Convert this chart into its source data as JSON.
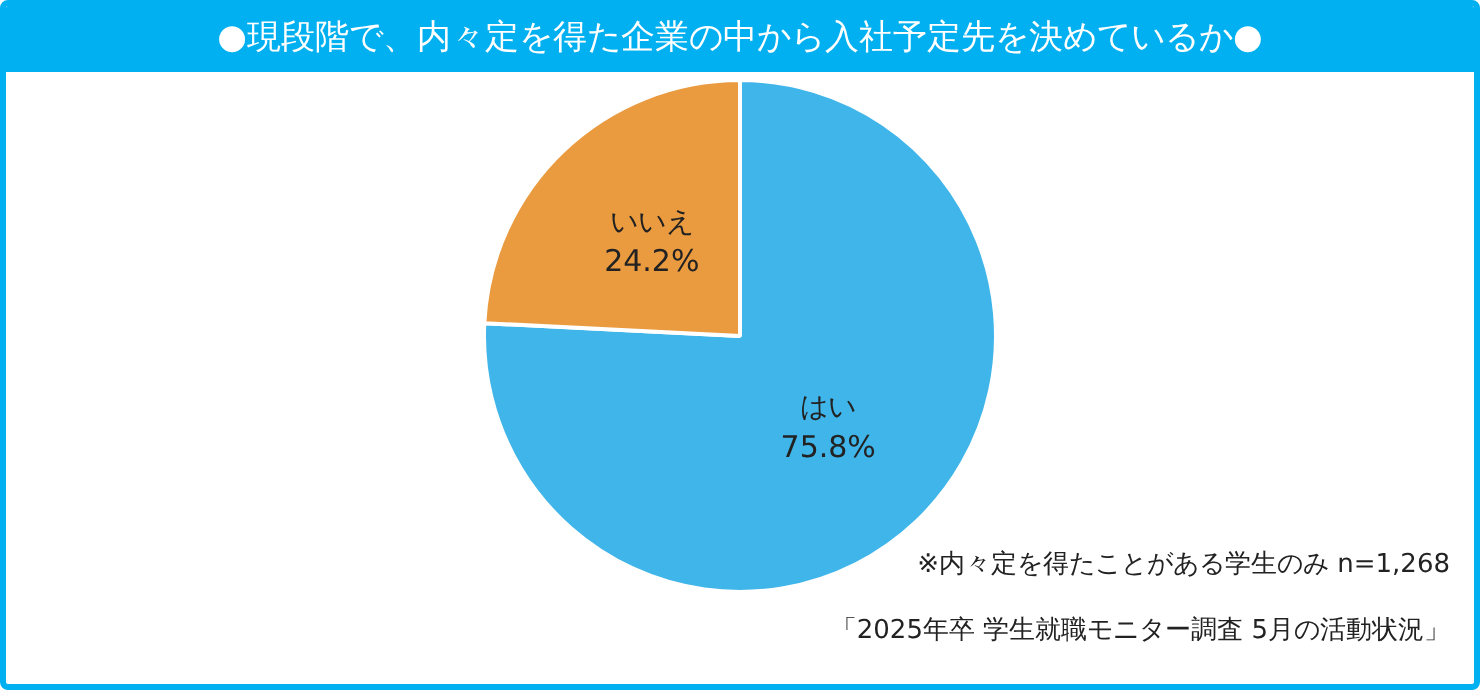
{
  "chart_data": {
    "type": "pie",
    "title": "●現段階で、内々定を得た企業の中から入社予定先を決めているか●",
    "categories": [
      "はい",
      "いいえ"
    ],
    "values": [
      75.8,
      24.2
    ],
    "colors": [
      "#3fb5e9",
      "#ea9b40"
    ],
    "value_labels": [
      "75.8%",
      "24.2%"
    ],
    "legend": false,
    "annotations": [
      "※内々定を得たことがある学生のみ n=1,268",
      "「2025年卒 学生就職モニター調査 5月の活動状況」"
    ]
  }
}
